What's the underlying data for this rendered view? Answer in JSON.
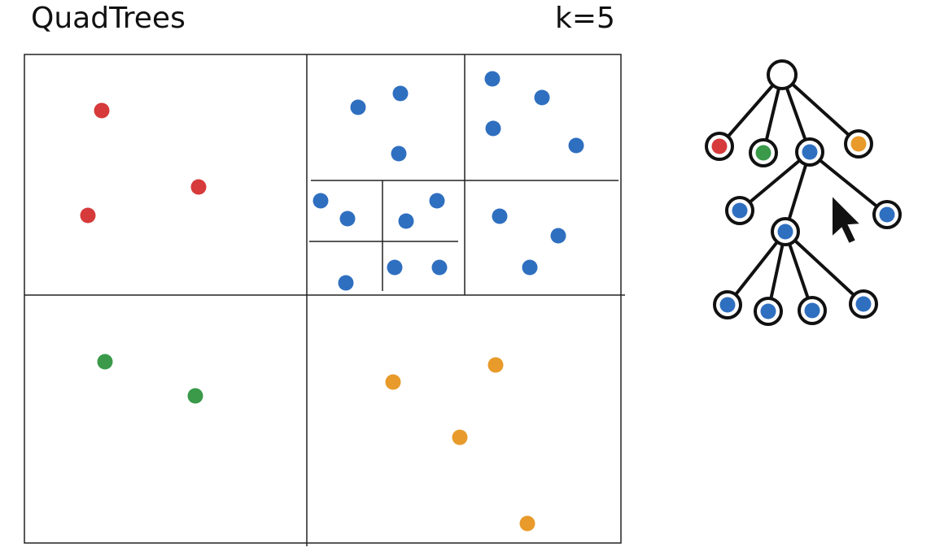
{
  "header": {
    "title": "QuadTrees",
    "label": "k=5"
  }
}
